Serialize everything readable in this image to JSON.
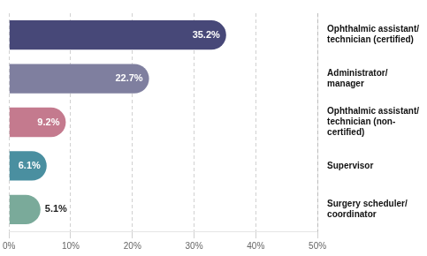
{
  "chart_data": {
    "type": "bar",
    "orientation": "horizontal",
    "categories": [
      "Ophthalmic assistant/\ntechnician (certified)",
      "Administrator/\nmanager",
      "Ophthalmic assistant/\ntechnician (non-\ncertified)",
      "Supervisor",
      "Surgery scheduler/\ncoordinator"
    ],
    "values": [
      35.2,
      22.7,
      9.2,
      6.1,
      5.1
    ],
    "value_labels": [
      "35.2%",
      "22.7%",
      "9.2%",
      "6.1%",
      "5.1%"
    ],
    "data_labels": true,
    "colors": [
      "#474878",
      "#7f7f9f",
      "#c47a8e",
      "#4a8fa0",
      "#7aaa9a"
    ],
    "xlim": [
      0,
      50
    ],
    "xticks": [
      {
        "value": 0,
        "label": "0%"
      },
      {
        "value": 10,
        "label": "10%"
      },
      {
        "value": 20,
        "label": "20%"
      },
      {
        "value": 30,
        "label": "30%"
      },
      {
        "value": 40,
        "label": "40%"
      },
      {
        "value": 50,
        "label": "50%"
      }
    ],
    "grid": true
  }
}
